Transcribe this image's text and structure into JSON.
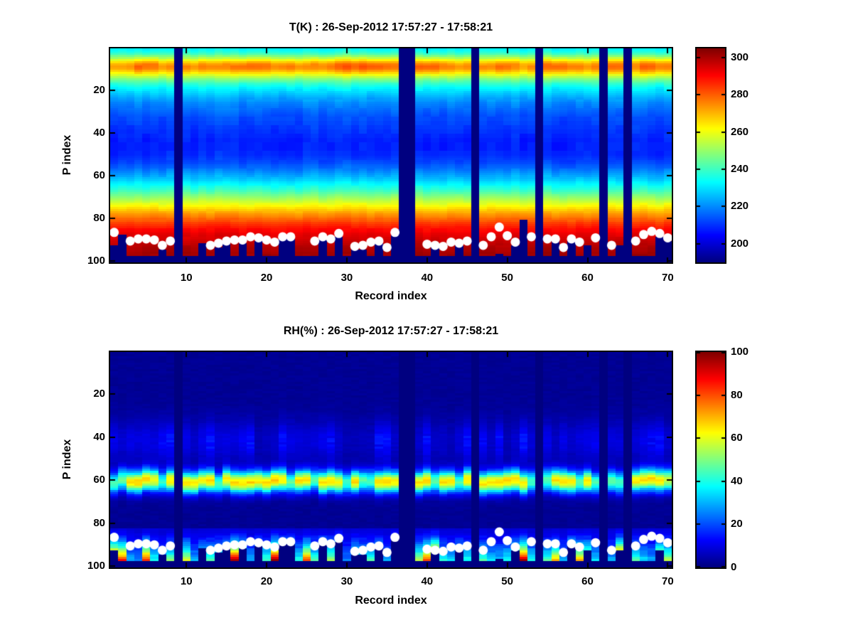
{
  "figure": {
    "background": "#ffffff",
    "colors": {
      "axis": "#000000",
      "text": "#000000",
      "dot": "#ffffff"
    }
  },
  "chart_data": [
    {
      "type": "heatmap",
      "title": "T(K) : 26-Sep-2012 17:57:27 - 17:58:21",
      "xlabel": "Record index",
      "ylabel": "P index",
      "x_range": [
        1,
        70
      ],
      "y_range": [
        1,
        100
      ],
      "y_direction": "down",
      "x_ticks": [
        10,
        20,
        30,
        40,
        50,
        60,
        70
      ],
      "y_ticks": [
        20,
        40,
        60,
        80,
        100
      ],
      "colormap": "jet",
      "clim": [
        190,
        305
      ],
      "colorbar_ticks": [
        200,
        220,
        240,
        260,
        280,
        300
      ],
      "missing_records": [
        9,
        37,
        38,
        46,
        54,
        62,
        65
      ],
      "base_profile": [
        233,
        236,
        240,
        246,
        252,
        259,
        266,
        271,
        273,
        272,
        268,
        263,
        257,
        252,
        247,
        243,
        239,
        236,
        233,
        231,
        229,
        227,
        225,
        223,
        222,
        220,
        219,
        218,
        217,
        216,
        215,
        214,
        213,
        213,
        212,
        212,
        211,
        211,
        210,
        210,
        209,
        209,
        208,
        208,
        208,
        208,
        208,
        208,
        209,
        209,
        210,
        211,
        212,
        213,
        215,
        216,
        218,
        220,
        222,
        224,
        226,
        228,
        231,
        233,
        236,
        238,
        241,
        244,
        247,
        250,
        253,
        256,
        259,
        262,
        265,
        268,
        271,
        274,
        276,
        279,
        281,
        284,
        286,
        288,
        290,
        291,
        293,
        294,
        295,
        296,
        297,
        298,
        299,
        300,
        300,
        301,
        301,
        190,
        190,
        190
      ],
      "warm_band": {
        "center_p": 9,
        "sigma": 3,
        "offsets_by_record": [
          2,
          0,
          2,
          6,
          7,
          5,
          1,
          2,
          0,
          2,
          1,
          3,
          2,
          1,
          2,
          3,
          6,
          7,
          6,
          5,
          2,
          5,
          5,
          2,
          1,
          2,
          3,
          4,
          6,
          7,
          7,
          8,
          9,
          8,
          7,
          4,
          0,
          0,
          6,
          7,
          6,
          5,
          2,
          1,
          2,
          0,
          2,
          3,
          6,
          5,
          2,
          1,
          2,
          0,
          5,
          7,
          6,
          5,
          2,
          1,
          2,
          0,
          5,
          5,
          0,
          2,
          6,
          7,
          5,
          3
        ]
      },
      "surface_p_by_record": [
        92,
        87.5,
        97,
        97,
        97,
        97,
        94,
        97,
        null,
        97,
        97,
        91,
        97,
        93,
        91,
        97,
        91,
        97,
        90,
        97,
        97,
        89.5,
        89.5,
        97,
        97,
        97,
        89.5,
        97,
        88,
        97,
        94,
        94,
        97,
        91.5,
        97,
        87,
        null,
        null,
        97,
        97,
        93,
        97,
        97,
        92.5,
        97,
        null,
        97,
        97,
        96,
        97,
        92,
        80.5,
        97,
        null,
        97,
        90.5,
        97,
        90.5,
        97,
        92,
        97,
        null,
        97,
        92,
        null,
        97,
        97,
        97,
        88,
        90
      ],
      "dots": [
        [
          1,
          86.5
        ],
        [
          3,
          90.5
        ],
        [
          4,
          89.5
        ],
        [
          5,
          89.5
        ],
        [
          6,
          90
        ],
        [
          7,
          92.5
        ],
        [
          8,
          90.5
        ],
        [
          13,
          92.5
        ],
        [
          14,
          91.5
        ],
        [
          15,
          90.5
        ],
        [
          16,
          90
        ],
        [
          17,
          90
        ],
        [
          18,
          88.5
        ],
        [
          19,
          89
        ],
        [
          20,
          90
        ],
        [
          21,
          91
        ],
        [
          22,
          88.5
        ],
        [
          23,
          88.5
        ],
        [
          26,
          90.5
        ],
        [
          27,
          88.5
        ],
        [
          28,
          89.5
        ],
        [
          29,
          87
        ],
        [
          31,
          93
        ],
        [
          32,
          92.5
        ],
        [
          33,
          91
        ],
        [
          34,
          90.5
        ],
        [
          35,
          93.5
        ],
        [
          36,
          86.5
        ],
        [
          40,
          92
        ],
        [
          41,
          92.5
        ],
        [
          42,
          93
        ],
        [
          43,
          91
        ],
        [
          44,
          91.5
        ],
        [
          45,
          90.5
        ],
        [
          47,
          92.5
        ],
        [
          48,
          88.5
        ],
        [
          49,
          84
        ],
        [
          50,
          88
        ],
        [
          51,
          91
        ],
        [
          53,
          88.5
        ],
        [
          55,
          89.5
        ],
        [
          56,
          89.5
        ],
        [
          57,
          93.5
        ],
        [
          58,
          89.5
        ],
        [
          59,
          91
        ],
        [
          61,
          89
        ],
        [
          63,
          92.5
        ],
        [
          66,
          90.5
        ],
        [
          67,
          87.5
        ],
        [
          68,
          86
        ],
        [
          69,
          87
        ],
        [
          70,
          89
        ]
      ],
      "noise": {
        "seed": 20120926,
        "column_amp": 3,
        "block_amp": 2.6
      }
    },
    {
      "type": "heatmap",
      "title": "RH(%) : 26-Sep-2012 17:57:27 - 17:58:21",
      "xlabel": "Record index",
      "ylabel": "P index",
      "x_range": [
        1,
        70
      ],
      "y_range": [
        1,
        100
      ],
      "y_direction": "down",
      "x_ticks": [
        10,
        20,
        30,
        40,
        50,
        60,
        70
      ],
      "y_ticks": [
        20,
        40,
        60,
        80,
        100
      ],
      "colormap": "jet",
      "clim": [
        0,
        100
      ],
      "colorbar_ticks": [
        0,
        20,
        40,
        60,
        80,
        100
      ],
      "missing_records": [
        9,
        37,
        38,
        46,
        54,
        62,
        65
      ],
      "base_value": 2,
      "band": {
        "center_p": 60.5,
        "sigma": 3.5,
        "amp_by_record": [
          42,
          45,
          62,
          65,
          63,
          60,
          40,
          62,
          0,
          63,
          62,
          60,
          64,
          42,
          62,
          65,
          63,
          64,
          62,
          64,
          66,
          62,
          44,
          63,
          62,
          42,
          63,
          62,
          60,
          42,
          64,
          44,
          42,
          63,
          65,
          62,
          0,
          0,
          63,
          65,
          44,
          63,
          62,
          42,
          63,
          0,
          62,
          64,
          63,
          66,
          64,
          62,
          42,
          0,
          44,
          63,
          64,
          62,
          44,
          63,
          42,
          0,
          44,
          42,
          0,
          62,
          64,
          65,
          63,
          55
        ]
      },
      "mid_band": {
        "center_p": 42,
        "sigma": 7,
        "amp_min": 3,
        "amp_max": 12
      },
      "finger": {
        "start_p": 83,
        "exponent": 1.6,
        "base": 8,
        "bottom_rh_by_record": [
          55,
          85,
          30,
          25,
          85,
          40,
          20,
          50,
          0,
          60,
          30,
          25,
          45,
          30,
          35,
          98,
          40,
          30,
          25,
          45,
          100,
          35,
          30,
          40,
          80,
          45,
          30,
          55,
          35,
          25,
          40,
          30,
          45,
          35,
          30,
          25,
          0,
          0,
          55,
          80,
          75,
          40,
          35,
          30,
          40,
          0,
          45,
          35,
          30,
          40,
          35,
          95,
          40,
          0,
          45,
          70,
          30,
          40,
          70,
          40,
          35,
          0,
          30,
          60,
          0,
          45,
          35,
          30,
          40,
          55
        ]
      },
      "surface_p_by_record": [
        92,
        97,
        97,
        97,
        97,
        97,
        94,
        97,
        null,
        97,
        97,
        91,
        97,
        93,
        91,
        97,
        91,
        97,
        90,
        97,
        97,
        89.5,
        89.5,
        97,
        97,
        97,
        89.5,
        97,
        88,
        97,
        94,
        94,
        97,
        91.5,
        97,
        87,
        null,
        null,
        97,
        97,
        93,
        97,
        97,
        92.5,
        97,
        null,
        97,
        97,
        96,
        97,
        92,
        97,
        97,
        null,
        97,
        97,
        97,
        90.5,
        97,
        92,
        97,
        null,
        97,
        92,
        null,
        97,
        97,
        97,
        92,
        97
      ],
      "dots": [
        [
          1,
          86.5
        ],
        [
          3,
          90.5
        ],
        [
          4,
          89.5
        ],
        [
          5,
          89.5
        ],
        [
          6,
          90
        ],
        [
          7,
          92.5
        ],
        [
          8,
          90.5
        ],
        [
          13,
          92.5
        ],
        [
          14,
          91.5
        ],
        [
          15,
          90.5
        ],
        [
          16,
          90
        ],
        [
          17,
          90
        ],
        [
          18,
          88.5
        ],
        [
          19,
          89
        ],
        [
          20,
          90
        ],
        [
          21,
          91
        ],
        [
          22,
          88.5
        ],
        [
          23,
          88.5
        ],
        [
          26,
          90.5
        ],
        [
          27,
          88.5
        ],
        [
          28,
          89.5
        ],
        [
          29,
          87
        ],
        [
          31,
          93
        ],
        [
          32,
          92.5
        ],
        [
          33,
          91
        ],
        [
          34,
          90.5
        ],
        [
          35,
          93.5
        ],
        [
          36,
          86.5
        ],
        [
          40,
          92
        ],
        [
          41,
          92.5
        ],
        [
          42,
          93
        ],
        [
          43,
          91
        ],
        [
          44,
          91.5
        ],
        [
          45,
          90.5
        ],
        [
          47,
          92.5
        ],
        [
          48,
          88.5
        ],
        [
          49,
          84
        ],
        [
          50,
          88
        ],
        [
          51,
          91
        ],
        [
          53,
          88.5
        ],
        [
          55,
          89.5
        ],
        [
          56,
          89.5
        ],
        [
          57,
          93.5
        ],
        [
          58,
          89.5
        ],
        [
          59,
          91
        ],
        [
          61,
          89
        ],
        [
          63,
          92.5
        ],
        [
          66,
          90.5
        ],
        [
          67,
          87.5
        ],
        [
          68,
          86
        ],
        [
          69,
          87
        ],
        [
          70,
          89
        ]
      ],
      "noise": {
        "seed": 1758,
        "column_amp": 1.2,
        "block_amp": 4
      }
    }
  ]
}
